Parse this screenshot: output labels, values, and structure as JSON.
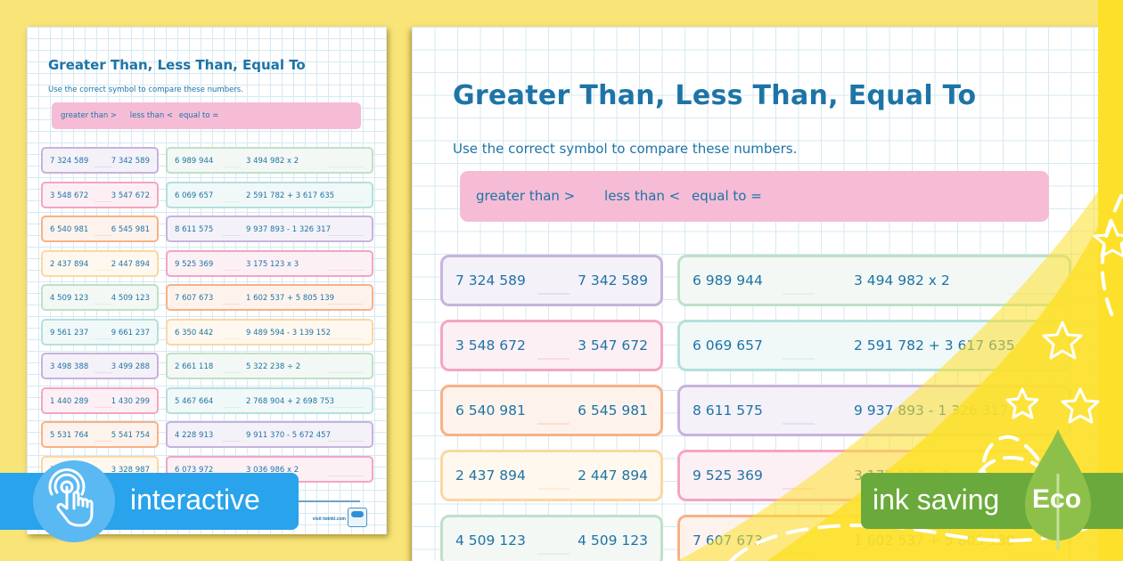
{
  "worksheet": {
    "title": "Greater Than, Less Than, Equal To",
    "instruction": "Use the correct symbol to compare these numbers.",
    "legend": {
      "greater": "greater than >",
      "less": "less than <",
      "equal": "equal to ="
    },
    "left_column": [
      {
        "a": "7 324 589",
        "b": "7 342 589",
        "color": "#c7b3dc",
        "fill": "#f4f1f8"
      },
      {
        "a": "3 548 672",
        "b": "3 547 672",
        "color": "#f3a5c4",
        "fill": "#fdf0f5"
      },
      {
        "a": "6 540 981",
        "b": "6 545 981",
        "color": "#f7b186",
        "fill": "#fef3ec"
      },
      {
        "a": "2 437 894",
        "b": "2 447 894",
        "color": "#fbd7a4",
        "fill": "#fff8ee"
      },
      {
        "a": "4 509 123",
        "b": "4 509 123",
        "color": "#bfe0c8",
        "fill": "#f3f8f4"
      },
      {
        "a": "9 561 237",
        "b": "9 661 237",
        "color": "#b4e0dc",
        "fill": "#f1f8f8"
      },
      {
        "a": "3 498 388",
        "b": "3 499 288",
        "color": "#c7b3dc",
        "fill": "#f4f1f8"
      },
      {
        "a": "1 440 289",
        "b": "1 430 299",
        "color": "#f3a5c4",
        "fill": "#fdf0f5"
      },
      {
        "a": "5 531 764",
        "b": "5 541 754",
        "color": "#f7b186",
        "fill": "#fef3ec"
      },
      {
        "a": "3 328 987",
        "b": "3 328 987",
        "color": "#fbd7a4",
        "fill": "#fff8ee"
      }
    ],
    "right_column": [
      {
        "a": "6 989 944",
        "b": "3 494 982 x 2",
        "color": "#bfe0c8",
        "fill": "#f3f8f4"
      },
      {
        "a": "6 069 657",
        "b": "2 591 782 + 3 617 635",
        "color": "#b4e0dc",
        "fill": "#f1f8f8"
      },
      {
        "a": "8 611 575",
        "b": "9 937 893 - 1 326 317",
        "color": "#c7b3dc",
        "fill": "#f4f1f8"
      },
      {
        "a": "9 525 369",
        "b": "3 175 123 x 3",
        "color": "#f3a5c4",
        "fill": "#fdf0f5"
      },
      {
        "a": "7 607 673",
        "b": "1 602 537 + 5 805 139",
        "color": "#f7b186",
        "fill": "#fef3ec"
      },
      {
        "a": "6 350 442",
        "b": "9 489 594 - 3 139 152",
        "color": "#fbd7a4",
        "fill": "#fff8ee"
      },
      {
        "a": "2 661 118",
        "b": "5 322 238 ÷ 2",
        "color": "#bfe0c8",
        "fill": "#f3f8f4"
      },
      {
        "a": "5 467 664",
        "b": "2 768 904 + 2 698 753",
        "color": "#b4e0dc",
        "fill": "#f1f8f8"
      },
      {
        "a": "4 228 913",
        "b": "9 911 370 - 5 672 457",
        "color": "#c7b3dc",
        "fill": "#f4f1f8"
      },
      {
        "a": "6 073 972",
        "b": "3 036 986 x 2",
        "color": "#f3a5c4",
        "fill": "#fdf0f5"
      }
    ],
    "footer_url": "visit twinkl.com"
  },
  "badges": {
    "interactive": "interactive",
    "ink_saving": "ink saving",
    "eco": "Eco"
  },
  "colors": {
    "background": "#f9e478",
    "text_blue": "#1d74a6",
    "legend_pink": "#f6bcd6",
    "interactive_blue": "#29a3ec",
    "eco_green": "#6aaa3c",
    "yellow_sweep": "#fde02a"
  }
}
